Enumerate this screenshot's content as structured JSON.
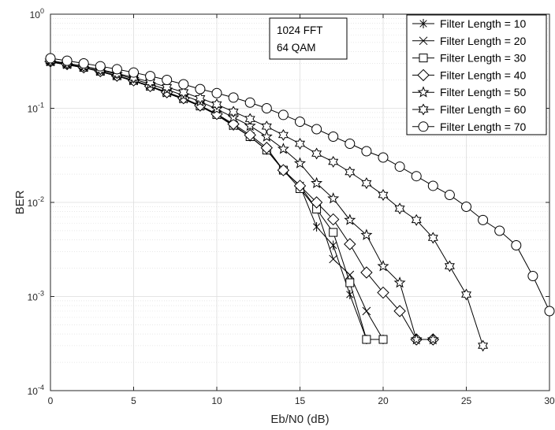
{
  "chart_data": {
    "type": "line",
    "xlabel": "Eb/N0 (dB)",
    "ylabel": "BER",
    "xlim": [
      0,
      30
    ],
    "ylim": [
      0.0001,
      1
    ],
    "yscale": "log",
    "grid": true,
    "legend_position": "top-right",
    "x_ticks": [
      "0",
      "5",
      "10",
      "15",
      "20",
      "25",
      "30"
    ],
    "y_ticks": [
      {
        "base": "10",
        "exp": "0"
      },
      {
        "base": "10",
        "exp": "-1"
      },
      {
        "base": "10",
        "exp": "-2"
      },
      {
        "base": "10",
        "exp": "-3"
      },
      {
        "base": "10",
        "exp": "-4"
      }
    ],
    "annotation": [
      "1024 FFT",
      "64 QAM"
    ],
    "line_color": "#000000",
    "series": [
      {
        "name": "Filter Length = 10",
        "marker": "asterisk",
        "x": [
          0,
          1,
          2,
          3,
          4,
          5,
          6,
          7,
          8,
          9,
          10,
          11,
          12,
          13,
          14,
          15,
          16,
          17,
          18,
          19,
          20
        ],
        "y": [
          0.31,
          0.29,
          0.27,
          0.245,
          0.22,
          0.195,
          0.17,
          0.145,
          0.125,
          0.105,
          0.085,
          0.065,
          0.05,
          0.036,
          0.022,
          0.015,
          0.0055,
          0.0035,
          0.00105,
          0.00035,
          0.00035
        ]
      },
      {
        "name": "Filter Length = 20",
        "marker": "x",
        "x": [
          0,
          1,
          2,
          3,
          4,
          5,
          6,
          7,
          8,
          9,
          10,
          11,
          12,
          13,
          14,
          15,
          16,
          17,
          18,
          19,
          20
        ],
        "y": [
          0.31,
          0.29,
          0.27,
          0.245,
          0.22,
          0.195,
          0.17,
          0.145,
          0.125,
          0.105,
          0.085,
          0.065,
          0.05,
          0.036,
          0.022,
          0.015,
          0.0085,
          0.0025,
          0.0017,
          0.0007,
          0.00035
        ]
      },
      {
        "name": "Filter Length = 30",
        "marker": "square",
        "x": [
          0,
          1,
          2,
          3,
          4,
          5,
          6,
          7,
          8,
          9,
          10,
          11,
          12,
          13,
          14,
          15,
          16,
          17,
          18,
          19,
          20
        ],
        "y": [
          0.315,
          0.295,
          0.272,
          0.248,
          0.222,
          0.198,
          0.172,
          0.148,
          0.127,
          0.106,
          0.086,
          0.066,
          0.05,
          0.036,
          0.022,
          0.014,
          0.0085,
          0.0048,
          0.0014,
          0.00035,
          0.00035
        ]
      },
      {
        "name": "Filter Length = 40",
        "marker": "diamond",
        "x": [
          0,
          1,
          2,
          3,
          4,
          5,
          6,
          7,
          8,
          9,
          10,
          11,
          12,
          13,
          14,
          15,
          16,
          17,
          18,
          19,
          20,
          21,
          22,
          23
        ],
        "y": [
          0.315,
          0.295,
          0.272,
          0.248,
          0.222,
          0.198,
          0.172,
          0.148,
          0.128,
          0.107,
          0.087,
          0.068,
          0.052,
          0.038,
          0.022,
          0.015,
          0.01,
          0.0066,
          0.0036,
          0.0018,
          0.0011,
          0.0007,
          0.00035,
          0.00035
        ]
      },
      {
        "name": "Filter Length = 50",
        "marker": "star5",
        "x": [
          0,
          1,
          2,
          3,
          4,
          5,
          6,
          7,
          8,
          9,
          10,
          11,
          12,
          13,
          14,
          15,
          16,
          17,
          18,
          19,
          20,
          21,
          22,
          23
        ],
        "y": [
          0.32,
          0.3,
          0.28,
          0.255,
          0.23,
          0.205,
          0.18,
          0.158,
          0.137,
          0.118,
          0.098,
          0.08,
          0.065,
          0.05,
          0.037,
          0.026,
          0.016,
          0.011,
          0.0065,
          0.0045,
          0.0021,
          0.0014,
          0.00035,
          0.00035
        ]
      },
      {
        "name": "Filter Length = 60",
        "marker": "star6",
        "x": [
          0,
          1,
          2,
          3,
          4,
          5,
          6,
          7,
          8,
          9,
          10,
          11,
          12,
          13,
          14,
          15,
          16,
          17,
          18,
          19,
          20,
          21,
          22,
          23,
          24,
          25,
          26
        ],
        "y": [
          0.32,
          0.3,
          0.28,
          0.258,
          0.235,
          0.212,
          0.19,
          0.168,
          0.148,
          0.128,
          0.11,
          0.092,
          0.077,
          0.064,
          0.052,
          0.042,
          0.033,
          0.027,
          0.021,
          0.016,
          0.012,
          0.0086,
          0.0065,
          0.0042,
          0.0021,
          0.00105,
          0.0003
        ]
      },
      {
        "name": "Filter Length = 70",
        "marker": "circle",
        "x": [
          0,
          1,
          2,
          3,
          4,
          5,
          6,
          7,
          8,
          9,
          10,
          11,
          12,
          13,
          14,
          15,
          16,
          17,
          18,
          19,
          20,
          21,
          22,
          23,
          24,
          25,
          26,
          27,
          28,
          29,
          30
        ],
        "y": [
          0.34,
          0.32,
          0.3,
          0.28,
          0.26,
          0.24,
          0.22,
          0.2,
          0.18,
          0.16,
          0.145,
          0.13,
          0.115,
          0.1,
          0.085,
          0.072,
          0.06,
          0.05,
          0.042,
          0.035,
          0.03,
          0.024,
          0.019,
          0.015,
          0.012,
          0.009,
          0.0065,
          0.005,
          0.0035,
          0.00165,
          0.0007
        ]
      }
    ]
  }
}
